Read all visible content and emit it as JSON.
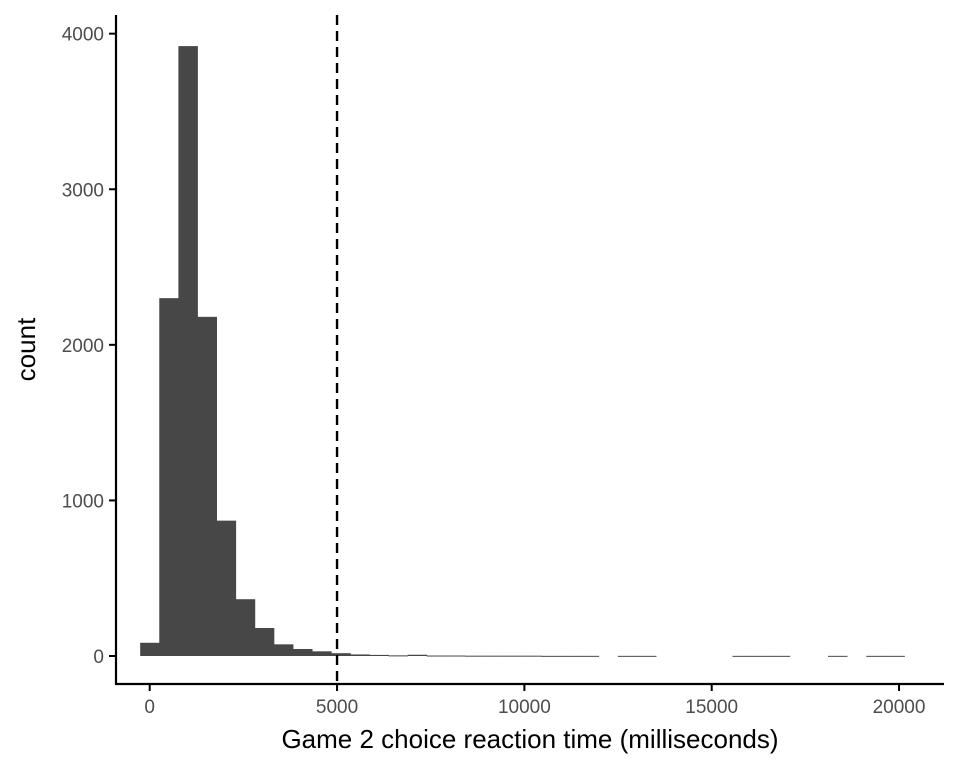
{
  "chart_data": {
    "type": "bar",
    "title": "",
    "xlabel": "Game 2 choice reaction time (milliseconds)",
    "ylabel": "count",
    "xlim": [
      -900,
      21200
    ],
    "ylim": [
      -180,
      4120
    ],
    "x_ticks": [
      0,
      5000,
      10000,
      15000,
      20000
    ],
    "x_tick_labels": [
      "0",
      "5000",
      "10000",
      "15000",
      "20000"
    ],
    "y_ticks": [
      0,
      1000,
      2000,
      3000,
      4000
    ],
    "y_tick_labels": [
      "0",
      "1000",
      "2000",
      "3000",
      "4000"
    ],
    "bin_width": 510,
    "bins": [
      {
        "x": 0,
        "count": 85
      },
      {
        "x": 510,
        "count": 2300
      },
      {
        "x": 1020,
        "count": 3920
      },
      {
        "x": 1530,
        "count": 2180
      },
      {
        "x": 2040,
        "count": 870
      },
      {
        "x": 2550,
        "count": 365
      },
      {
        "x": 3060,
        "count": 180
      },
      {
        "x": 3570,
        "count": 75
      },
      {
        "x": 4080,
        "count": 45
      },
      {
        "x": 4590,
        "count": 30
      },
      {
        "x": 5100,
        "count": 18
      },
      {
        "x": 5610,
        "count": 10
      },
      {
        "x": 6120,
        "count": 7
      },
      {
        "x": 6630,
        "count": 4
      },
      {
        "x": 7140,
        "count": 8
      },
      {
        "x": 7650,
        "count": 3
      },
      {
        "x": 8160,
        "count": 3
      },
      {
        "x": 8670,
        "count": 2
      },
      {
        "x": 9180,
        "count": 2
      },
      {
        "x": 9690,
        "count": 2
      },
      {
        "x": 10200,
        "count": 2
      },
      {
        "x": 10710,
        "count": 1
      },
      {
        "x": 11220,
        "count": 1
      },
      {
        "x": 11730,
        "count": 1
      },
      {
        "x": 12750,
        "count": 1
      },
      {
        "x": 13260,
        "count": 1
      },
      {
        "x": 15810,
        "count": 1
      },
      {
        "x": 16320,
        "count": 1
      },
      {
        "x": 16830,
        "count": 1
      },
      {
        "x": 18360,
        "count": 1
      },
      {
        "x": 19380,
        "count": 1
      },
      {
        "x": 19890,
        "count": 1
      }
    ],
    "reference_line": {
      "x": 5000,
      "style": "dashed",
      "color": "#000000"
    },
    "bar_color": "#474747",
    "grid": false,
    "legend": "none"
  }
}
